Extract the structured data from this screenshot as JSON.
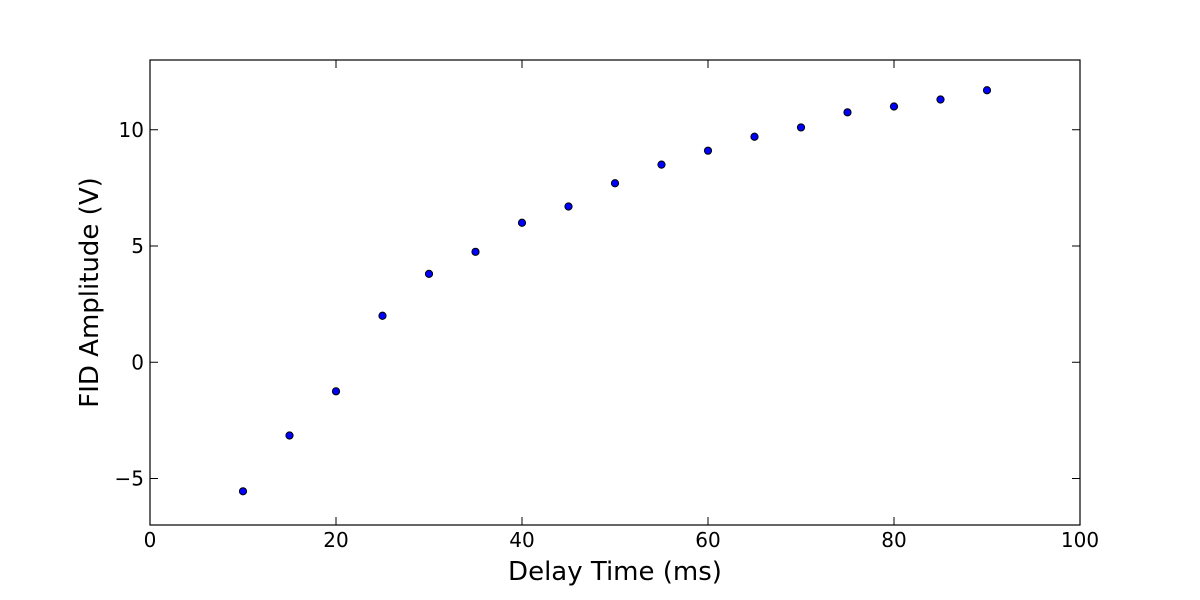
{
  "chart_data": {
    "type": "scatter",
    "title": "",
    "xlabel": "Delay Time (ms)",
    "ylabel": "FID Amplitude (V)",
    "xlim": [
      0,
      100
    ],
    "ylim": [
      -7,
      13
    ],
    "xticks": [
      0,
      20,
      40,
      60,
      80,
      100
    ],
    "xtick_labels": [
      "0",
      "20",
      "40",
      "60",
      "80",
      "100"
    ],
    "yticks": [
      -5,
      0,
      5,
      10
    ],
    "ytick_labels": [
      "−5",
      "0",
      "5",
      "10"
    ],
    "grid": false,
    "marker_color": "#0000ff",
    "marker_edge_color": "#000000",
    "x": [
      10,
      15,
      20,
      25,
      30,
      35,
      40,
      45,
      50,
      55,
      60,
      65,
      70,
      75,
      80,
      85,
      90
    ],
    "y": [
      -5.55,
      -3.15,
      -1.25,
      2.0,
      3.8,
      4.75,
      6.0,
      6.7,
      7.7,
      8.5,
      9.1,
      9.7,
      10.1,
      10.75,
      11.0,
      11.3,
      11.7
    ]
  }
}
